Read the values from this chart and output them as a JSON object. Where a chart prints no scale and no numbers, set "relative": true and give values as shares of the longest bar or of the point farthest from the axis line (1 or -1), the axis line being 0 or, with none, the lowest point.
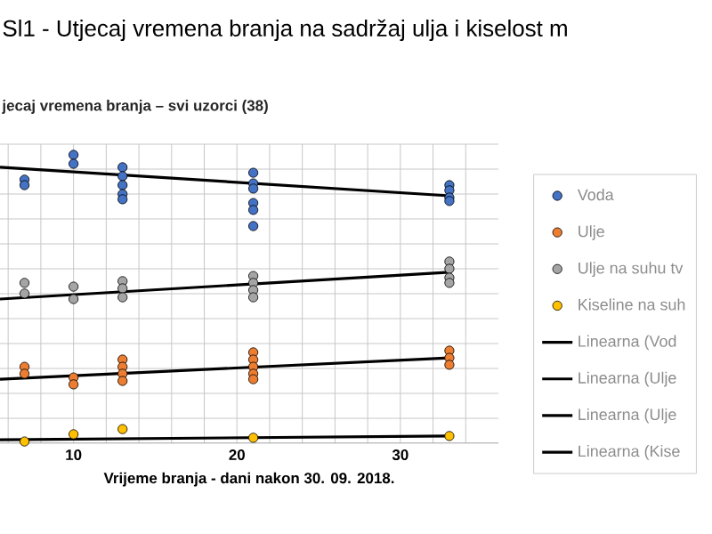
{
  "chart_data": {
    "type": "scatter",
    "title": "Sl1 - Utjecaj vremena branja na sadržaj ulja i kiselost m",
    "subtitle": "jecaj vremena branja – svi uzorci (38)",
    "xlabel": "Vrijeme branja - dani nakon 30. 09. 2018.",
    "relative": true,
    "xlim": [
      5.5,
      36
    ],
    "xticks": [
      {
        "value": 6,
        "label": null
      },
      {
        "value": 8,
        "label": null
      },
      10,
      {
        "value": 12,
        "label": null
      },
      {
        "value": 14,
        "label": null
      },
      {
        "value": 16,
        "label": null
      },
      {
        "value": 18,
        "label": null
      },
      20,
      {
        "value": 22,
        "label": null
      },
      {
        "value": 24,
        "label": null
      },
      {
        "value": 26,
        "label": null
      },
      {
        "value": 28,
        "label": null
      },
      30,
      {
        "value": 32,
        "label": null
      },
      {
        "value": 34,
        "label": null
      }
    ],
    "grid": true,
    "legend": "right",
    "marker": "circle",
    "series": [
      {
        "name": "Voda",
        "color": "#4472c4",
        "x": [
          7,
          7,
          10,
          10,
          13,
          13,
          13,
          13,
          13,
          21,
          21,
          21,
          21,
          21,
          21,
          33,
          33,
          33,
          33
        ],
        "values": [
          0.914,
          0.895,
          1.0,
          0.969,
          0.957,
          0.926,
          0.895,
          0.864,
          0.846,
          0.938,
          0.901,
          0.883,
          0.833,
          0.809,
          0.753,
          0.895,
          0.877,
          0.852,
          0.84
        ]
      },
      {
        "name": "Ulje",
        "color": "#ed7d31",
        "x": [
          7,
          7,
          10,
          10,
          13,
          13,
          13,
          13,
          21,
          21,
          21,
          21,
          21,
          33,
          33,
          33
        ],
        "values": [
          0.265,
          0.241,
          0.228,
          0.204,
          0.29,
          0.265,
          0.241,
          0.216,
          0.315,
          0.29,
          0.265,
          0.241,
          0.222,
          0.321,
          0.296,
          0.272
        ]
      },
      {
        "name": "Ulje na suhu tv",
        "color": "#a5a5a5",
        "x": [
          7,
          7,
          10,
          10,
          13,
          13,
          13,
          21,
          21,
          21,
          21,
          33,
          33,
          33,
          33
        ],
        "values": [
          0.556,
          0.519,
          0.543,
          0.5,
          0.562,
          0.537,
          0.506,
          0.58,
          0.556,
          0.531,
          0.506,
          0.63,
          0.605,
          0.574,
          0.556
        ]
      },
      {
        "name": "Kiseline na suh",
        "color": "#ffc000",
        "x": [
          7,
          10,
          13,
          21,
          33
        ],
        "values": [
          0.006,
          0.031,
          0.049,
          0.019,
          0.025
        ]
      },
      {
        "name": "Linearna (Vod",
        "type": "line",
        "marker": "none",
        "color": "#000000",
        "x": [
          5.5,
          33
        ],
        "values": [
          0.957,
          0.858
        ]
      },
      {
        "name": "Linearna (Ulje",
        "type": "line",
        "color": "#000000",
        "x": [
          5.5,
          33
        ],
        "values": [
          0.222,
          0.296
        ],
        "marker": "none"
      },
      {
        "name": "Linearna (Ulje",
        "type": "line",
        "color": "#000000",
        "x": [
          5.5,
          33
        ],
        "values": [
          0.5,
          0.593
        ],
        "marker": "none"
      },
      {
        "name": "Linearna (Kise",
        "type": "line",
        "marker": "none",
        "color": "#000000",
        "x": [
          5.5,
          33
        ],
        "values": [
          0.012,
          0.025
        ]
      }
    ]
  }
}
